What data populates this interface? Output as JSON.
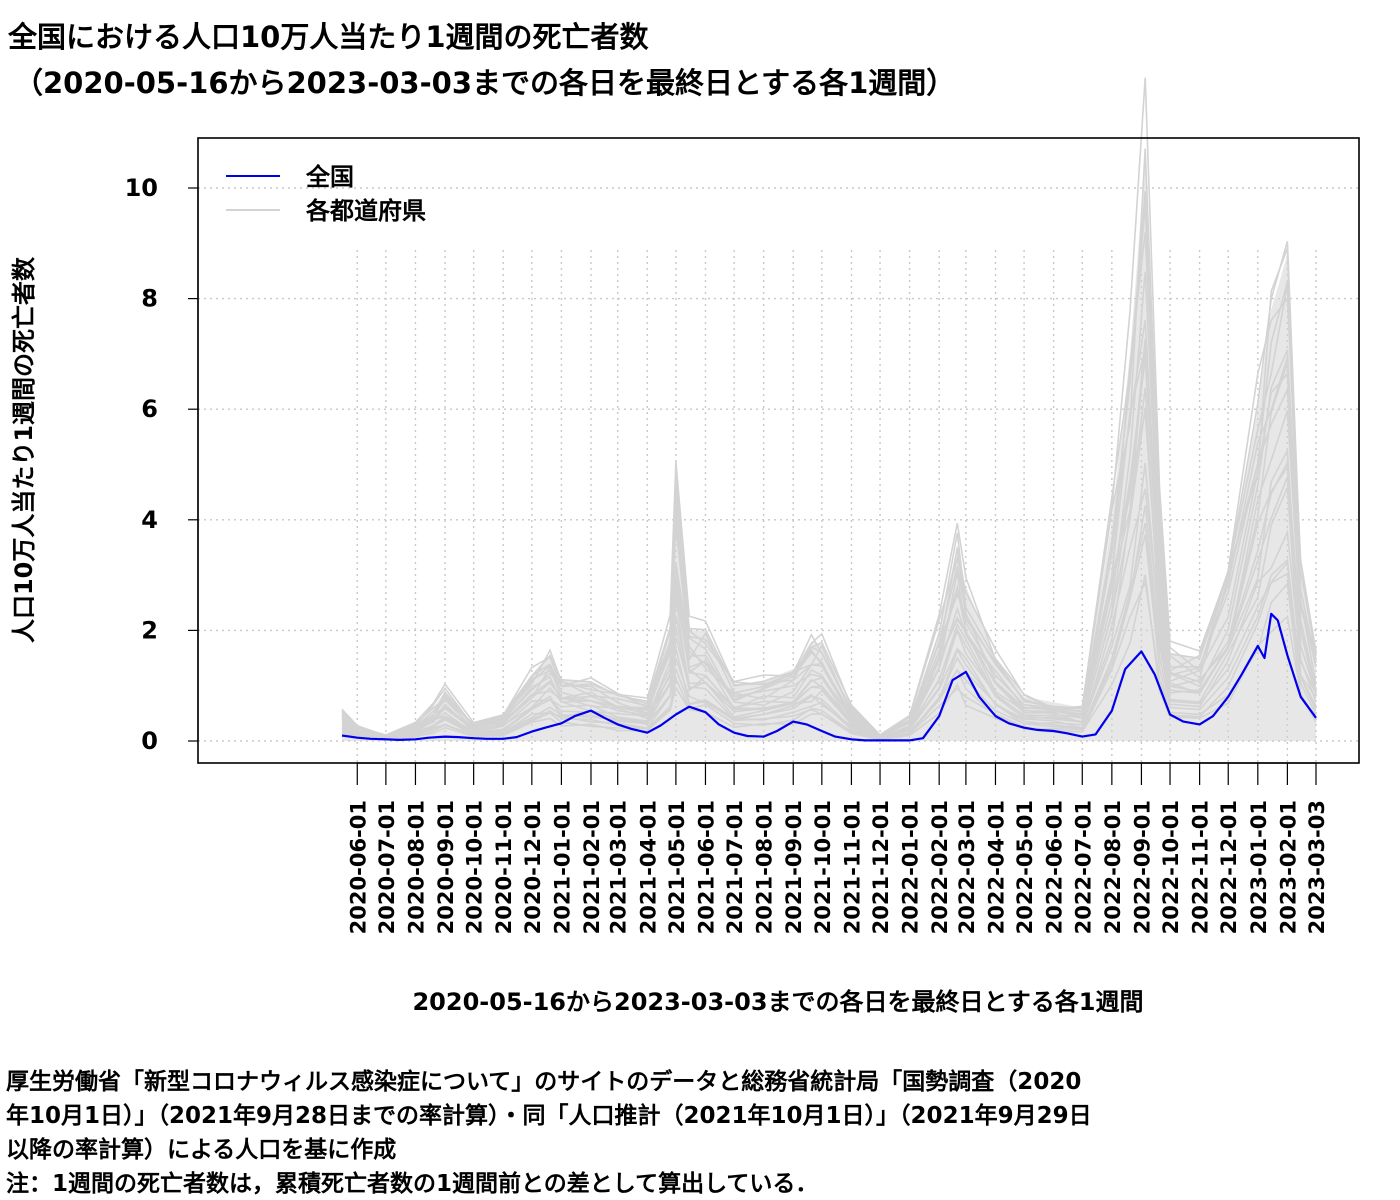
{
  "title": {
    "line1": "全国における人口10万人当たり1週間の死亡者数",
    "line2": "（2020-05-16から2023-03-03までの各日を最終日とする各1週間）"
  },
  "caption": {
    "line1": "厚生労働省「新型コロナウィルス感染症について」のサイトのデータと総務省統計局「国勢調査（2020",
    "line2": "年10月1日）」（2021年9月28日までの率計算）・同「人口推計（2021年10月1日）」（2021年9月29日",
    "line3": "以降の率計算）による人口を基に作成",
    "note": "注：1週間の死亡者数は，累積死亡者数の1週間前との差として算出している．"
  },
  "chart_data": {
    "type": "line",
    "title": "全国における人口10万人当たり1週間の死亡者数（2020-05-16から2023-03-03までの各日を最終日とする各1週間）",
    "xlabel": "2020-05-16から2023-03-03までの各日を最終日とする各1週間",
    "ylabel": "人口10万人当たり1週間の死亡者数",
    "xlim": [
      "2020-05-16",
      "2023-03-03"
    ],
    "ylim": [
      0,
      10.5
    ],
    "yticks": [
      0,
      2,
      4,
      6,
      8,
      10
    ],
    "xticks": [
      "2020-06-01",
      "2020-07-01",
      "2020-08-01",
      "2020-09-01",
      "2020-10-01",
      "2020-11-01",
      "2020-12-01",
      "2021-01-01",
      "2021-02-01",
      "2021-03-01",
      "2021-04-01",
      "2021-05-01",
      "2021-06-01",
      "2021-07-01",
      "2021-08-01",
      "2021-09-01",
      "2021-10-01",
      "2021-11-01",
      "2021-12-01",
      "2022-01-01",
      "2022-02-01",
      "2022-03-01",
      "2022-04-01",
      "2022-05-01",
      "2022-06-01",
      "2022-07-01",
      "2022-08-01",
      "2022-09-01",
      "2022-10-01",
      "2022-11-01",
      "2022-12-01",
      "2023-01-01",
      "2023-02-01",
      "2023-03-03"
    ],
    "grid": true,
    "legend": {
      "position": "top-left",
      "entries": [
        "全国",
        "各都道府県"
      ]
    },
    "colors": {
      "national": "#0000ee",
      "prefectures": "#d3d3d3",
      "grid": "#c8c8c8"
    },
    "series": [
      {
        "name": "全国",
        "points": [
          [
            "2020-05-16",
            0.1
          ],
          [
            "2020-06-01",
            0.06
          ],
          [
            "2020-06-15",
            0.04
          ],
          [
            "2020-07-01",
            0.03
          ],
          [
            "2020-07-15",
            0.02
          ],
          [
            "2020-08-01",
            0.03
          ],
          [
            "2020-08-15",
            0.06
          ],
          [
            "2020-09-01",
            0.08
          ],
          [
            "2020-09-15",
            0.07
          ],
          [
            "2020-10-01",
            0.05
          ],
          [
            "2020-10-15",
            0.04
          ],
          [
            "2020-11-01",
            0.04
          ],
          [
            "2020-11-15",
            0.07
          ],
          [
            "2020-12-01",
            0.17
          ],
          [
            "2020-12-15",
            0.24
          ],
          [
            "2021-01-01",
            0.32
          ],
          [
            "2021-01-15",
            0.45
          ],
          [
            "2021-02-01",
            0.55
          ],
          [
            "2021-02-15",
            0.42
          ],
          [
            "2021-03-01",
            0.3
          ],
          [
            "2021-03-15",
            0.22
          ],
          [
            "2021-04-01",
            0.15
          ],
          [
            "2021-04-15",
            0.28
          ],
          [
            "2021-05-01",
            0.48
          ],
          [
            "2021-05-15",
            0.62
          ],
          [
            "2021-06-01",
            0.52
          ],
          [
            "2021-06-15",
            0.3
          ],
          [
            "2021-07-01",
            0.15
          ],
          [
            "2021-07-15",
            0.09
          ],
          [
            "2021-08-01",
            0.08
          ],
          [
            "2021-08-15",
            0.18
          ],
          [
            "2021-09-01",
            0.35
          ],
          [
            "2021-09-15",
            0.3
          ],
          [
            "2021-10-01",
            0.18
          ],
          [
            "2021-10-15",
            0.08
          ],
          [
            "2021-11-01",
            0.03
          ],
          [
            "2021-11-15",
            0.01
          ],
          [
            "2021-12-01",
            0.01
          ],
          [
            "2021-12-15",
            0.01
          ],
          [
            "2022-01-01",
            0.01
          ],
          [
            "2022-01-15",
            0.05
          ],
          [
            "2022-02-01",
            0.45
          ],
          [
            "2022-02-15",
            1.1
          ],
          [
            "2022-03-01",
            1.25
          ],
          [
            "2022-03-15",
            0.8
          ],
          [
            "2022-04-01",
            0.45
          ],
          [
            "2022-04-15",
            0.32
          ],
          [
            "2022-05-01",
            0.24
          ],
          [
            "2022-05-15",
            0.2
          ],
          [
            "2022-06-01",
            0.18
          ],
          [
            "2022-06-15",
            0.14
          ],
          [
            "2022-07-01",
            0.08
          ],
          [
            "2022-07-15",
            0.12
          ],
          [
            "2022-08-01",
            0.55
          ],
          [
            "2022-08-15",
            1.3
          ],
          [
            "2022-09-01",
            1.62
          ],
          [
            "2022-09-15",
            1.2
          ],
          [
            "2022-10-01",
            0.48
          ],
          [
            "2022-10-15",
            0.35
          ],
          [
            "2022-11-01",
            0.3
          ],
          [
            "2022-11-15",
            0.45
          ],
          [
            "2022-12-01",
            0.8
          ],
          [
            "2022-12-15",
            1.2
          ],
          [
            "2023-01-01",
            1.72
          ],
          [
            "2023-01-08",
            1.5
          ],
          [
            "2023-01-15",
            2.3
          ],
          [
            "2023-01-22",
            2.18
          ],
          [
            "2023-02-01",
            1.55
          ],
          [
            "2023-02-15",
            0.8
          ],
          [
            "2023-03-03",
            0.42
          ]
        ]
      },
      {
        "name": "各都道府県",
        "points": [
          [
            "2020-05-16",
            0.55
          ],
          [
            "2020-06-01",
            0.25
          ],
          [
            "2020-07-01",
            0.1
          ],
          [
            "2020-08-01",
            0.3
          ],
          [
            "2020-08-20",
            0.6
          ],
          [
            "2020-09-01",
            0.9
          ],
          [
            "2020-10-01",
            0.3
          ],
          [
            "2020-11-01",
            0.45
          ],
          [
            "2020-12-01",
            1.2
          ],
          [
            "2020-12-20",
            1.55
          ],
          [
            "2021-01-01",
            1.1
          ],
          [
            "2021-02-01",
            1.05
          ],
          [
            "2021-03-01",
            0.8
          ],
          [
            "2021-04-01",
            0.7
          ],
          [
            "2021-04-25",
            2.0
          ],
          [
            "2021-05-01",
            4.4
          ],
          [
            "2021-05-15",
            2.0
          ],
          [
            "2021-06-01",
            2.0
          ],
          [
            "2021-07-01",
            1.0
          ],
          [
            "2021-08-01",
            1.1
          ],
          [
            "2021-09-01",
            1.3
          ],
          [
            "2021-09-20",
            1.8
          ],
          [
            "2021-10-01",
            1.75
          ],
          [
            "2021-11-01",
            0.6
          ],
          [
            "2021-12-01",
            0.1
          ],
          [
            "2022-01-01",
            0.4
          ],
          [
            "2022-02-01",
            2.0
          ],
          [
            "2022-02-20",
            3.55
          ],
          [
            "2022-03-01",
            2.8
          ],
          [
            "2022-04-01",
            1.5
          ],
          [
            "2022-05-01",
            0.8
          ],
          [
            "2022-06-01",
            0.7
          ],
          [
            "2022-07-01",
            0.6
          ],
          [
            "2022-08-01",
            4.0
          ],
          [
            "2022-08-20",
            7.0
          ],
          [
            "2022-09-05",
            10.5
          ],
          [
            "2022-09-20",
            4.0
          ],
          [
            "2022-10-01",
            1.6
          ],
          [
            "2022-11-01",
            1.5
          ],
          [
            "2022-12-01",
            3.0
          ],
          [
            "2023-01-01",
            6.0
          ],
          [
            "2023-01-15",
            7.8
          ],
          [
            "2023-02-01",
            8.8
          ],
          [
            "2023-02-15",
            3.0
          ],
          [
            "2023-03-03",
            1.5
          ]
        ]
      }
    ]
  }
}
